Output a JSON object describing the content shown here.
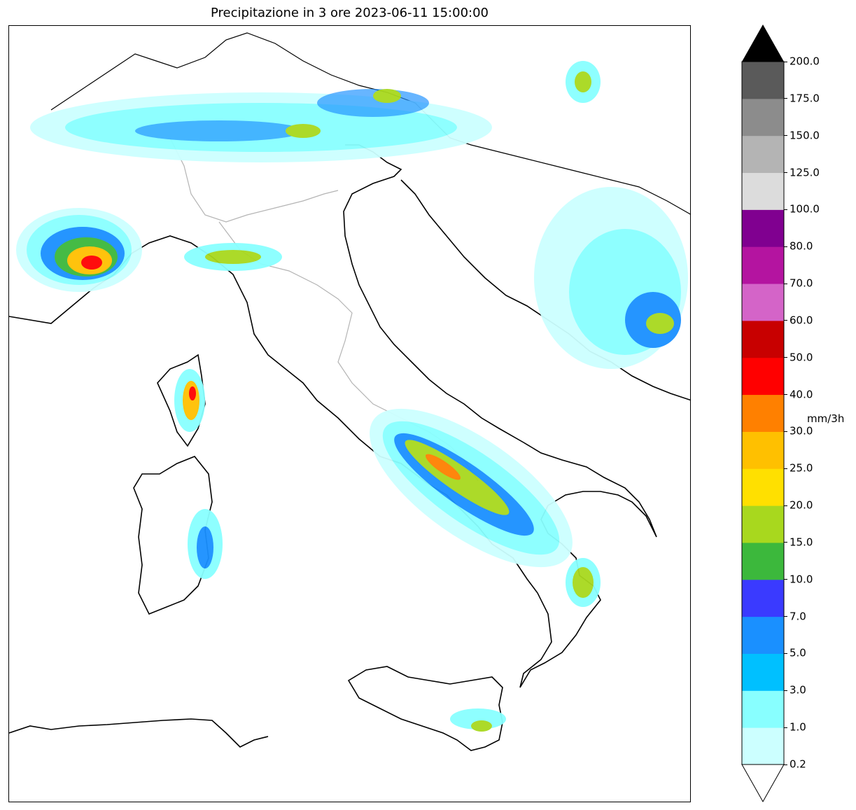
{
  "title": "Precipitazione in 3 ore 2023-06-11 15:00:00",
  "colorbar": {
    "unit": "mm/3h",
    "ticks": [
      "0.2",
      "1.0",
      "3.0",
      "5.0",
      "7.0",
      "10.0",
      "15.0",
      "20.0",
      "25.0",
      "30.0",
      "40.0",
      "50.0",
      "60.0",
      "70.0",
      "80.0",
      "100.0",
      "125.0",
      "150.0",
      "175.0",
      "200.0"
    ],
    "colors": [
      "#ccffff",
      "#88ffff",
      "#00c0ff",
      "#1a90ff",
      "#3a3aff",
      "#3cb83c",
      "#a8d81e",
      "#ffe000",
      "#ffc000",
      "#ff8000",
      "#ff0000",
      "#c80000",
      "#d464c8",
      "#b414a0",
      "#800090",
      "#dcdcdc",
      "#b4b4b4",
      "#8c8c8c",
      "#5a5a5a"
    ],
    "extend_over": "#000000",
    "extend_under": "#ffffff"
  }
}
